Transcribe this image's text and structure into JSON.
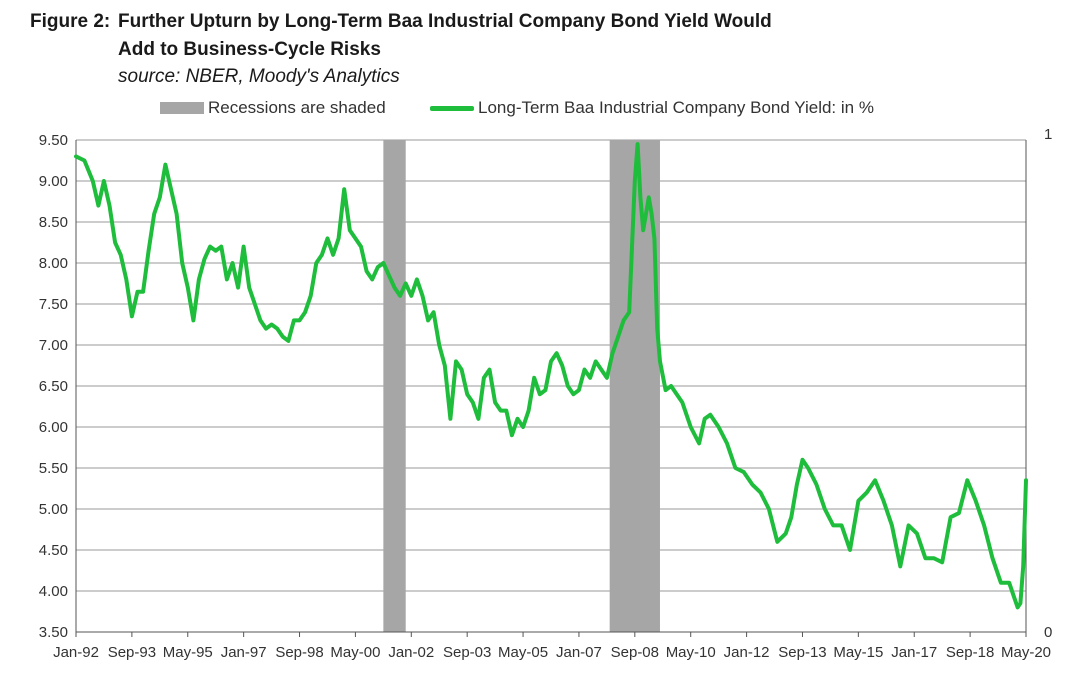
{
  "header": {
    "figure_label": "Figure 2:",
    "title_line1": "Further Upturn by Long-Term Baa Industrial Company Bond Yield Would",
    "title_line2": "Add to Business-Cycle Risks",
    "source": "source: NBER, Moody's Analytics"
  },
  "chart_data": {
    "type": "line",
    "title": "Further Upturn by Long-Term Baa Industrial Company Bond Yield Would Add to Business-Cycle Risks",
    "legend": [
      {
        "label": "Recessions are shaded",
        "kind": "shade",
        "color": "#a6a6a6"
      },
      {
        "label": "Long-Term Baa Industrial Company Bond Yield:  in %",
        "kind": "line",
        "color": "#1fbd3c"
      }
    ],
    "legend_position": "top",
    "grid": true,
    "x_range": [
      "1992-01",
      "2020-05"
    ],
    "x_tick_labels": [
      "Jan-92",
      "Sep-93",
      "May-95",
      "Jan-97",
      "Sep-98",
      "May-00",
      "Jan-02",
      "Sep-03",
      "May-05",
      "Jan-07",
      "Sep-08",
      "May-10",
      "Jan-12",
      "Sep-13",
      "May-15",
      "Jan-17",
      "Sep-18",
      "May-20"
    ],
    "y_left": {
      "ylim": [
        3.5,
        9.5
      ],
      "ticks": [
        "3.50",
        "4.00",
        "4.50",
        "5.00",
        "5.50",
        "6.00",
        "6.50",
        "7.00",
        "7.50",
        "8.00",
        "8.50",
        "9.00",
        "9.50"
      ]
    },
    "y_right": {
      "ylim": [
        0,
        1
      ],
      "ticks": [
        "0",
        "1"
      ]
    },
    "recessions": [
      {
        "start": "2001-03",
        "end": "2001-11"
      },
      {
        "start": "2007-12",
        "end": "2009-06"
      }
    ],
    "series": [
      {
        "name": "Long-Term Baa Industrial Company Bond Yield:  in %",
        "x": [
          "1992-01",
          "1992-04",
          "1992-07",
          "1992-09",
          "1992-11",
          "1993-01",
          "1993-03",
          "1993-05",
          "1993-07",
          "1993-09",
          "1993-11",
          "1994-01",
          "1994-03",
          "1994-05",
          "1994-07",
          "1994-09",
          "1994-11",
          "1995-01",
          "1995-03",
          "1995-05",
          "1995-07",
          "1995-09",
          "1995-11",
          "1996-01",
          "1996-03",
          "1996-05",
          "1996-07",
          "1996-09",
          "1996-11",
          "1997-01",
          "1997-03",
          "1997-05",
          "1997-07",
          "1997-09",
          "1997-11",
          "1998-01",
          "1998-03",
          "1998-05",
          "1998-07",
          "1998-09",
          "1998-11",
          "1999-01",
          "1999-03",
          "1999-05",
          "1999-07",
          "1999-09",
          "1999-11",
          "2000-01",
          "2000-03",
          "2000-05",
          "2000-07",
          "2000-09",
          "2000-11",
          "2001-01",
          "2001-03",
          "2001-05",
          "2001-07",
          "2001-09",
          "2001-11",
          "2002-01",
          "2002-03",
          "2002-05",
          "2002-07",
          "2002-09",
          "2002-11",
          "2003-01",
          "2003-03",
          "2003-05",
          "2003-07",
          "2003-09",
          "2003-11",
          "2004-01",
          "2004-03",
          "2004-05",
          "2004-07",
          "2004-09",
          "2004-11",
          "2005-01",
          "2005-03",
          "2005-05",
          "2005-07",
          "2005-09",
          "2005-11",
          "2006-01",
          "2006-03",
          "2006-05",
          "2006-07",
          "2006-09",
          "2006-11",
          "2007-01",
          "2007-03",
          "2007-05",
          "2007-07",
          "2007-09",
          "2007-11",
          "2008-01",
          "2008-03",
          "2008-05",
          "2008-07",
          "2008-09",
          "2008-10",
          "2008-11",
          "2008-12",
          "2009-01",
          "2009-02",
          "2009-03",
          "2009-04",
          "2009-05",
          "2009-06",
          "2009-08",
          "2009-10",
          "2009-12",
          "2010-02",
          "2010-05",
          "2010-08",
          "2010-10",
          "2010-12",
          "2011-03",
          "2011-06",
          "2011-09",
          "2011-12",
          "2012-03",
          "2012-06",
          "2012-09",
          "2012-12",
          "2013-03",
          "2013-05",
          "2013-07",
          "2013-09",
          "2013-11",
          "2014-02",
          "2014-05",
          "2014-08",
          "2014-11",
          "2015-02",
          "2015-05",
          "2015-08",
          "2015-11",
          "2016-02",
          "2016-05",
          "2016-08",
          "2016-11",
          "2017-02",
          "2017-05",
          "2017-08",
          "2017-11",
          "2018-02",
          "2018-05",
          "2018-08",
          "2018-11",
          "2019-02",
          "2019-05",
          "2019-08",
          "2019-11",
          "2020-02",
          "2020-03",
          "2020-04",
          "2020-05"
        ],
        "values": [
          9.3,
          9.25,
          9.0,
          8.7,
          9.0,
          8.7,
          8.25,
          8.1,
          7.8,
          7.35,
          7.65,
          7.65,
          8.15,
          8.6,
          8.8,
          9.2,
          8.9,
          8.6,
          8.0,
          7.7,
          7.3,
          7.8,
          8.05,
          8.2,
          8.15,
          8.2,
          7.8,
          8.0,
          7.7,
          8.2,
          7.7,
          7.5,
          7.3,
          7.2,
          7.25,
          7.2,
          7.1,
          7.05,
          7.3,
          7.3,
          7.4,
          7.6,
          8.0,
          8.1,
          8.3,
          8.1,
          8.3,
          8.9,
          8.4,
          8.3,
          8.2,
          7.9,
          7.8,
          7.95,
          8.0,
          7.85,
          7.7,
          7.6,
          7.75,
          7.6,
          7.8,
          7.6,
          7.3,
          7.4,
          7.0,
          6.75,
          6.1,
          6.8,
          6.7,
          6.4,
          6.3,
          6.1,
          6.6,
          6.7,
          6.3,
          6.2,
          6.2,
          5.9,
          6.1,
          6.0,
          6.2,
          6.6,
          6.4,
          6.45,
          6.8,
          6.9,
          6.75,
          6.5,
          6.4,
          6.45,
          6.7,
          6.6,
          6.8,
          6.7,
          6.6,
          6.9,
          7.1,
          7.3,
          7.4,
          9.0,
          9.45,
          8.8,
          8.4,
          8.6,
          8.8,
          8.6,
          8.3,
          7.2,
          6.8,
          6.45,
          6.5,
          6.4,
          6.3,
          6.0,
          5.8,
          6.1,
          6.15,
          6.0,
          5.8,
          5.5,
          5.45,
          5.3,
          5.2,
          5.0,
          4.6,
          4.7,
          4.9,
          5.3,
          5.6,
          5.5,
          5.3,
          5.0,
          4.8,
          4.8,
          4.5,
          5.1,
          5.2,
          5.35,
          5.1,
          4.8,
          4.3,
          4.8,
          4.7,
          4.4,
          4.4,
          4.35,
          4.9,
          4.95,
          5.35,
          5.1,
          4.8,
          4.4,
          4.1,
          4.1,
          3.8,
          3.85,
          4.3,
          5.35
        ]
      }
    ]
  }
}
